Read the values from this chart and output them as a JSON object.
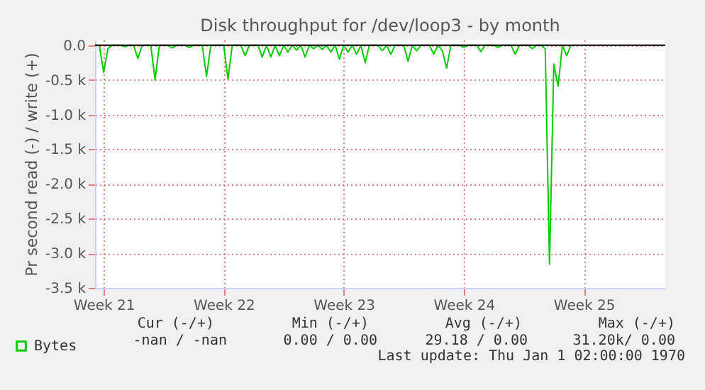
{
  "chart_data": {
    "type": "line",
    "title": "Disk throughput for /dev/loop3 - by month",
    "ylabel": "Pr second read (-) / write (+)",
    "categories": [
      null,
      null,
      "Week 21",
      null,
      null,
      null,
      null,
      null,
      null,
      null,
      null,
      null,
      null,
      null,
      null,
      null,
      null,
      null,
      null,
      null,
      null,
      null,
      null,
      null,
      null,
      null,
      null,
      null,
      null,
      null,
      "Week 22",
      null,
      null,
      null,
      null,
      null,
      null,
      null,
      null,
      null,
      null,
      null,
      null,
      null,
      null,
      null,
      null,
      null,
      null,
      null,
      null,
      null,
      null,
      null,
      null,
      null,
      null,
      null,
      "Week 23",
      null,
      null,
      null,
      null,
      null,
      null,
      null,
      null,
      null,
      null,
      null,
      null,
      null,
      null,
      null,
      null,
      null,
      null,
      null,
      null,
      null,
      null,
      null,
      null,
      null,
      null,
      null,
      "Week 24",
      null,
      null,
      null,
      null,
      null,
      null,
      null,
      null,
      null,
      null,
      null,
      null,
      null,
      null,
      null,
      null,
      null,
      null,
      null,
      null,
      null,
      null,
      null,
      null,
      null,
      null,
      null,
      "Week 25",
      null,
      null,
      null,
      null,
      null,
      null,
      null,
      null,
      null,
      null,
      null,
      null,
      null,
      null,
      null,
      null,
      null,
      null,
      null
    ],
    "series": [
      {
        "name": "Bytes",
        "color": "#00cc00",
        "values": [
          0,
          0,
          -390,
          -50,
          0,
          0,
          0,
          -20,
          0,
          0,
          -190,
          0,
          0,
          0,
          -500,
          0,
          0,
          0,
          -40,
          0,
          0,
          0,
          -30,
          0,
          0,
          0,
          -450,
          0,
          0,
          0,
          0,
          -490,
          0,
          0,
          0,
          -150,
          0,
          0,
          0,
          -170,
          0,
          -170,
          0,
          -150,
          0,
          -100,
          0,
          -70,
          0,
          -170,
          0,
          -50,
          0,
          -60,
          0,
          -100,
          0,
          -200,
          0,
          -100,
          0,
          -130,
          0,
          -250,
          0,
          0,
          0,
          -80,
          0,
          -130,
          0,
          0,
          0,
          -230,
          0,
          -80,
          0,
          0,
          0,
          -130,
          0,
          -80,
          -330,
          0,
          0,
          0,
          -30,
          0,
          0,
          0,
          -90,
          0,
          0,
          0,
          -30,
          0,
          0,
          0,
          -130,
          0,
          0,
          0,
          -50,
          0,
          0,
          -50,
          -3160,
          -270,
          -590,
          0,
          -150,
          0,
          null,
          null,
          null,
          null,
          null,
          null,
          null,
          null,
          null,
          null,
          null,
          null,
          null,
          null,
          null,
          null,
          null,
          null,
          null,
          null,
          null,
          null
        ]
      }
    ],
    "ylim": [
      -3500,
      80
    ],
    "yticks": [
      {
        "value": 0,
        "label": "0.0"
      },
      {
        "value": -500,
        "label": "-0.5 k"
      },
      {
        "value": -1000,
        "label": "-1.0 k"
      },
      {
        "value": -1500,
        "label": "-1.5 k"
      },
      {
        "value": -2000,
        "label": "-2.0 k"
      },
      {
        "value": -2500,
        "label": "-2.5 k"
      },
      {
        "value": -3000,
        "label": "-3.0 k"
      },
      {
        "value": -3500,
        "label": "-3.5 k"
      }
    ],
    "grid": true,
    "legend": "bottom left",
    "marker": "none",
    "line_style": "solid",
    "annotations": [
      "Cur (-/+)",
      "Min (-/+)",
      "Avg (-/+)",
      "Max (-/+)",
      "-nan /  -nan",
      "0.00 /  0.00",
      "29.18 /  0.00",
      "31.20k/  0.00",
      "Last update: Thu Jan  1 02:00:00 1970"
    ]
  }
}
